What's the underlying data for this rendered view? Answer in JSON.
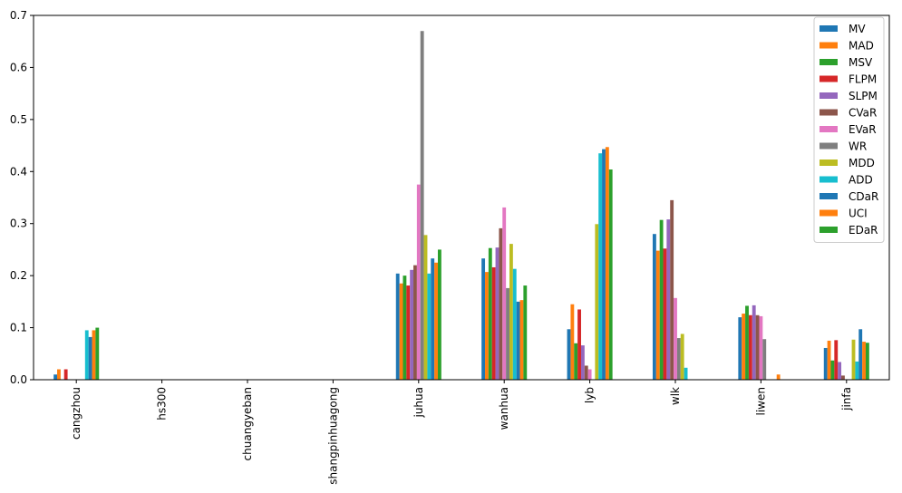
{
  "chart_data": {
    "type": "bar",
    "title": "",
    "xlabel": "",
    "ylabel": "",
    "ylim": [
      0,
      0.7
    ],
    "yticks": [
      "0.0",
      "0.1",
      "0.2",
      "0.3",
      "0.4",
      "0.5",
      "0.6",
      "0.7"
    ],
    "grid": false,
    "legend_position": "top-right",
    "categories": [
      "cangzhou",
      "hs300",
      "chuangyeban",
      "shangpinhuagong",
      "juhua",
      "wanhua",
      "lyb",
      "wlk",
      "liwen",
      "jinfa"
    ],
    "series": [
      {
        "name": "MV",
        "color": "#1f77b4",
        "values": [
          0.01,
          0,
          0,
          0,
          0.204,
          0.233,
          0.097,
          0.28,
          0.12,
          0.061
        ]
      },
      {
        "name": "MAD",
        "color": "#ff7f0e",
        "values": [
          0.02,
          0,
          0,
          0,
          0.185,
          0.207,
          0.145,
          0.248,
          0.127,
          0.075
        ]
      },
      {
        "name": "MSV",
        "color": "#2ca02c",
        "values": [
          0,
          0,
          0,
          0,
          0.2,
          0.253,
          0.07,
          0.307,
          0.142,
          0.037
        ]
      },
      {
        "name": "FLPM",
        "color": "#d62728",
        "values": [
          0.02,
          0,
          0,
          0,
          0.181,
          0.216,
          0.135,
          0.252,
          0.124,
          0.076
        ]
      },
      {
        "name": "SLPM",
        "color": "#9467bd",
        "values": [
          0,
          0,
          0,
          0,
          0.211,
          0.254,
          0.066,
          0.308,
          0.143,
          0.034
        ]
      },
      {
        "name": "CVaR",
        "color": "#8c564b",
        "values": [
          0,
          0,
          0,
          0,
          0.22,
          0.291,
          0.027,
          0.345,
          0.124,
          0.008
        ]
      },
      {
        "name": "EVaR",
        "color": "#e377c2",
        "values": [
          0,
          0,
          0,
          0,
          0.375,
          0.331,
          0.02,
          0.157,
          0.122,
          0
        ]
      },
      {
        "name": "WR",
        "color": "#7f7f7f",
        "values": [
          0,
          0,
          0,
          0,
          0.67,
          0.176,
          0,
          0.08,
          0.078,
          0
        ]
      },
      {
        "name": "MDD",
        "color": "#bcbd22",
        "values": [
          0,
          0,
          0,
          0,
          0.278,
          0.261,
          0.299,
          0.088,
          0,
          0.077
        ]
      },
      {
        "name": "ADD",
        "color": "#17becf",
        "values": [
          0.095,
          0,
          0,
          0,
          0.204,
          0.213,
          0.435,
          0.023,
          0,
          0.035
        ]
      },
      {
        "name": "CDaR",
        "color": "#1f77b4",
        "values": [
          0.082,
          0,
          0,
          0,
          0.233,
          0.15,
          0.443,
          0,
          0,
          0.097
        ]
      },
      {
        "name": "UCI",
        "color": "#ff7f0e",
        "values": [
          0.095,
          0,
          0,
          0,
          0.225,
          0.153,
          0.447,
          0,
          0.01,
          0.073
        ]
      },
      {
        "name": "EDaR",
        "color": "#2ca02c",
        "values": [
          0.1,
          0,
          0,
          0,
          0.25,
          0.181,
          0.404,
          0,
          0,
          0.071
        ]
      }
    ]
  }
}
